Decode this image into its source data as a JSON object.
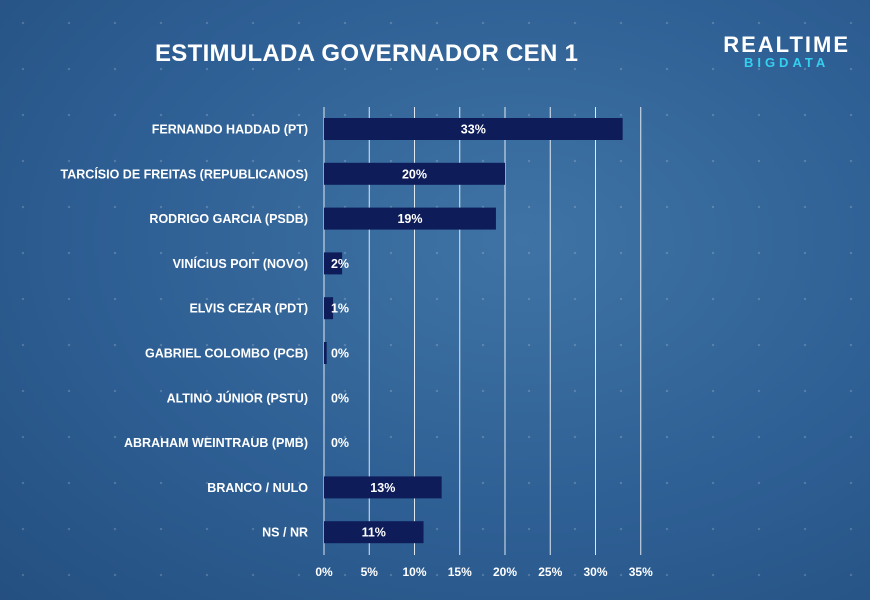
{
  "header": {
    "title": "ESTIMULADA GOVERNADOR CEN 1",
    "logo_top": "REALTIME",
    "logo_bottom": "BIGDATA"
  },
  "colors": {
    "bar": "#0e1d5a",
    "grid": "#ffffff",
    "text": "#ffffff",
    "logo_accent": "#33d0f0"
  },
  "chart_data": {
    "type": "bar",
    "orientation": "horizontal",
    "title": "ESTIMULADA GOVERNADOR CEN 1",
    "categories": [
      "FERNANDO HADDAD (PT)",
      "TARCÍSIO DE FREITAS (REPUBLICANOS)",
      "RODRIGO GARCIA (PSDB)",
      "VINÍCIUS POIT (NOVO)",
      "ELVIS CEZAR (PDT)",
      "GABRIEL COLOMBO (PCB)",
      "ALTINO JÚNIOR (PSTU)",
      "ABRAHAM WEINTRAUB (PMB)",
      "BRANCO / NULO",
      "NS / NR"
    ],
    "values": [
      33,
      20,
      19,
      2,
      1,
      0.3,
      0,
      0,
      13,
      11
    ],
    "data_labels": [
      "33%",
      "20%",
      "19%",
      "2%",
      "1%",
      "0%",
      "0%",
      "0%",
      "13%",
      "11%"
    ],
    "x_ticks": [
      "0%",
      "5%",
      "10%",
      "15%",
      "20%",
      "25%",
      "30%",
      "35%"
    ],
    "xlim": [
      0,
      35
    ],
    "grid": true,
    "legend": false
  }
}
